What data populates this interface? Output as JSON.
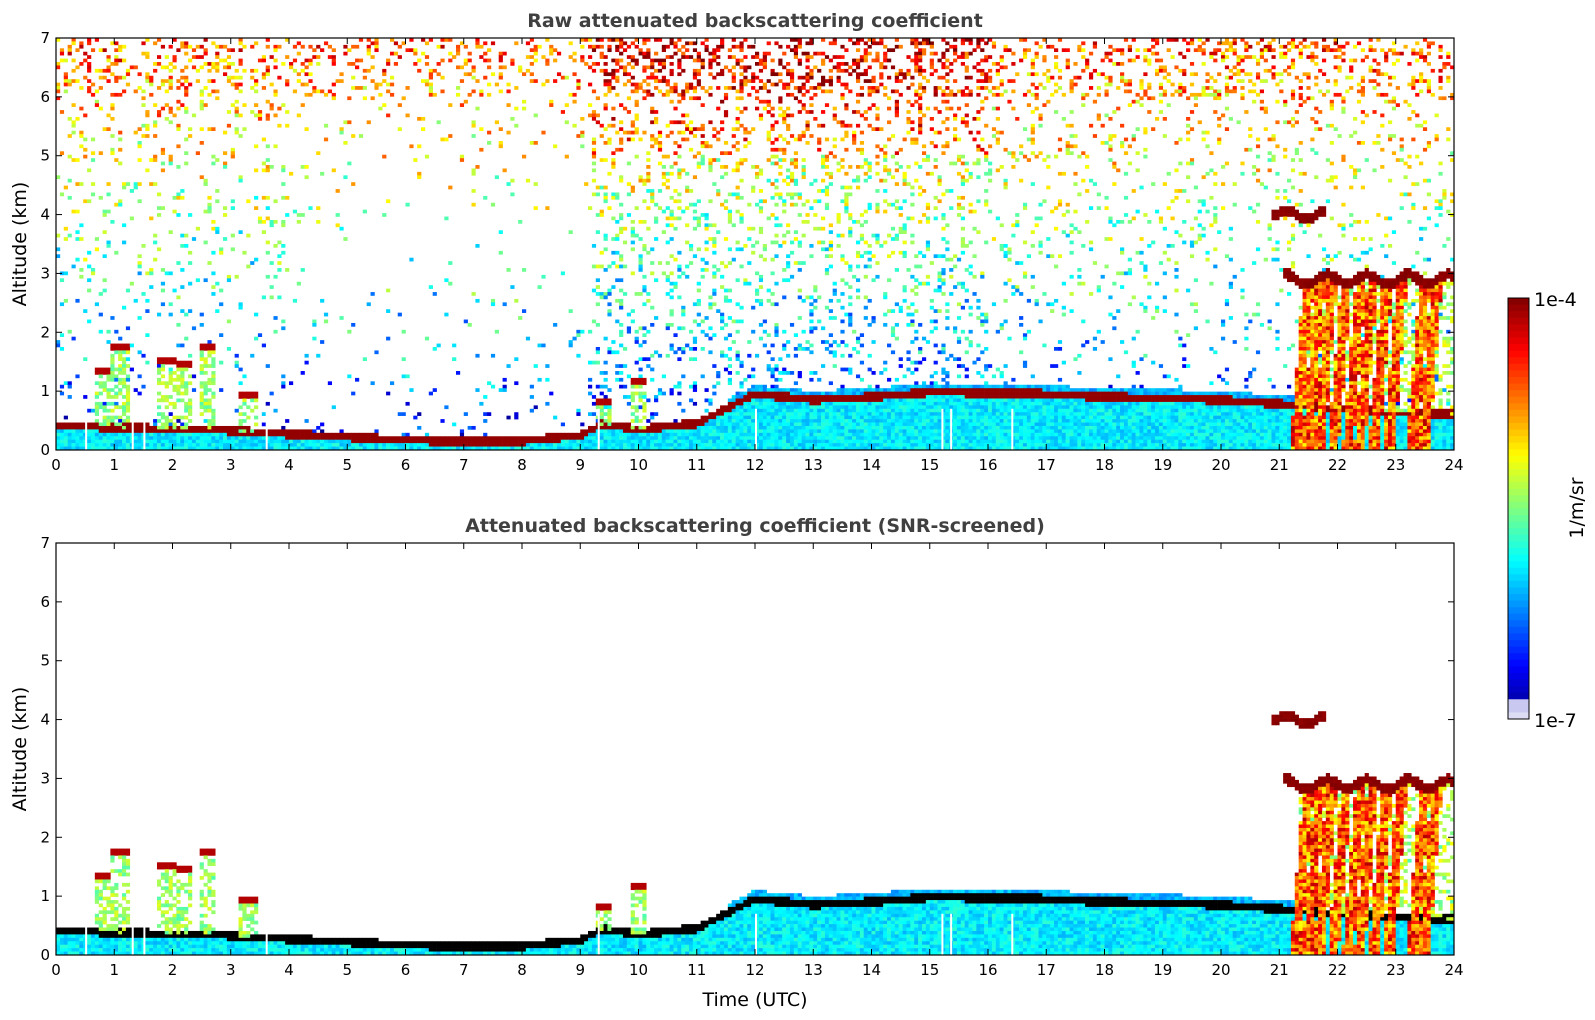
{
  "colors": {
    "jet": [
      "#00007f",
      "#0000ff",
      "#007fff",
      "#00ffff",
      "#7fff7f",
      "#ffff00",
      "#ff7f00",
      "#ff0000",
      "#7f0000"
    ],
    "low_end": "#dcdcf5",
    "screened_dense": "#000000"
  },
  "chart_data": [
    {
      "type": "heatmap",
      "title": "Raw attenuated backscattering coefficient",
      "xlabel": "",
      "ylabel": "Altitude (km)",
      "xlim": [
        0,
        24
      ],
      "ylim": [
        0,
        7
      ],
      "xticks": [
        "0",
        "1",
        "2",
        "3",
        "4",
        "5",
        "6",
        "7",
        "8",
        "9",
        "10",
        "11",
        "12",
        "13",
        "14",
        "15",
        "16",
        "17",
        "18",
        "19",
        "20",
        "21",
        "22",
        "23",
        "24"
      ],
      "yticks": [
        "0",
        "1",
        "2",
        "3",
        "4",
        "5",
        "6",
        "7"
      ],
      "features": {
        "boundary_layer_top_km": [
          [
            0,
            0.42
          ],
          [
            1,
            0.38
          ],
          [
            2,
            0.36
          ],
          [
            3,
            0.33
          ],
          [
            3.5,
            0.3
          ],
          [
            4,
            0.27
          ],
          [
            5,
            0.22
          ],
          [
            6,
            0.17
          ],
          [
            7,
            0.14
          ],
          [
            8,
            0.15
          ],
          [
            9,
            0.25
          ],
          [
            9.4,
            0.45
          ],
          [
            10,
            0.35
          ],
          [
            11,
            0.45
          ],
          [
            11.6,
            0.75
          ],
          [
            12,
            0.95
          ],
          [
            13,
            0.85
          ],
          [
            14,
            0.9
          ],
          [
            15,
            0.98
          ],
          [
            16,
            0.97
          ],
          [
            17,
            0.95
          ],
          [
            18,
            0.9
          ],
          [
            19,
            0.88
          ],
          [
            20,
            0.85
          ],
          [
            21,
            0.78
          ],
          [
            22,
            0.7
          ],
          [
            23,
            0.65
          ],
          [
            24,
            0.6
          ]
        ],
        "mid_clouds": [
          {
            "x0": 20.9,
            "x1": 21.8,
            "alt_km": 4.0
          },
          {
            "x0": 21.1,
            "x1": 24.0,
            "alt_km": 2.9
          }
        ],
        "precipitation_streaks_x": [
          21.5,
          21.7,
          21.9,
          22.15,
          22.4,
          22.6,
          22.85,
          23.1,
          23.5,
          23.7
        ]
      }
    },
    {
      "type": "heatmap",
      "title": "Attenuated backscattering coefficient (SNR-screened)",
      "xlabel": "Time (UTC)",
      "ylabel": "Altitude (km)",
      "xlim": [
        0,
        24
      ],
      "ylim": [
        0,
        7
      ],
      "xticks": [
        "0",
        "1",
        "2",
        "3",
        "4",
        "5",
        "6",
        "7",
        "8",
        "9",
        "10",
        "11",
        "12",
        "13",
        "14",
        "15",
        "16",
        "17",
        "18",
        "19",
        "20",
        "21",
        "22",
        "23",
        "24"
      ],
      "yticks": [
        "0",
        "1",
        "2",
        "3",
        "4",
        "5",
        "6",
        "7"
      ],
      "screened": true
    }
  ],
  "colorbar": {
    "max_label": "1e-4",
    "min_label": "1e-7",
    "unit_label": "1/m/sr",
    "range": [
      1e-07,
      0.0001
    ],
    "scale": "log"
  }
}
